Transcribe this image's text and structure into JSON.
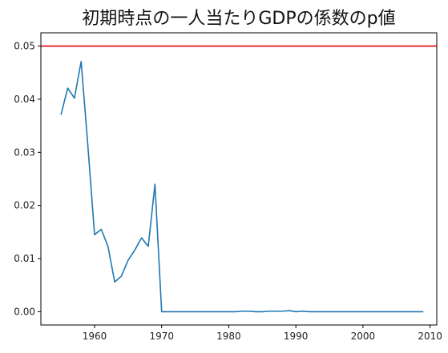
{
  "chart_data": {
    "type": "line",
    "title": "初期時点の一人当たりGDPの係数のp値",
    "xlabel": "",
    "ylabel": "",
    "xlim": [
      1952,
      2011
    ],
    "ylim": [
      -0.0025,
      0.0525
    ],
    "xticks": [
      1960,
      1970,
      1980,
      1990,
      2000,
      2010
    ],
    "xtick_labels": [
      "1960",
      "1970",
      "1980",
      "1990",
      "2000",
      "2010"
    ],
    "yticks": [
      0.0,
      0.01,
      0.02,
      0.03,
      0.04,
      0.05
    ],
    "ytick_labels": [
      "0.00",
      "0.01",
      "0.02",
      "0.03",
      "0.04",
      "0.05"
    ],
    "grid": false,
    "reference_line": {
      "y": 0.05,
      "color": "#e00000"
    },
    "series": [
      {
        "color": "#1f77b4",
        "x": [
          1955,
          1956,
          1957,
          1958,
          1959,
          1960,
          1961,
          1962,
          1963,
          1964,
          1965,
          1966,
          1967,
          1968,
          1969,
          1970,
          1971,
          1972,
          1973,
          1974,
          1975,
          1976,
          1977,
          1978,
          1979,
          1980,
          1981,
          1982,
          1983,
          1984,
          1985,
          1986,
          1987,
          1988,
          1989,
          1990,
          1991,
          1992,
          1993,
          1994,
          1995,
          1996,
          1997,
          1998,
          1999,
          2000,
          2001,
          2002,
          2003,
          2004,
          2005,
          2006,
          2007,
          2008,
          2009
        ],
        "y": [
          0.0371,
          0.0421,
          0.0402,
          0.0471,
          0.0313,
          0.0145,
          0.0155,
          0.0123,
          0.0056,
          0.0067,
          0.0097,
          0.0116,
          0.0139,
          0.0123,
          0.024,
          0.0,
          0.0,
          0.0,
          0.0,
          0.0,
          0.0,
          0.0,
          0.0,
          0.0,
          0.0,
          0.0,
          0.0,
          0.0001,
          0.0001,
          0.0,
          0.0,
          0.0001,
          0.0001,
          0.0001,
          0.0002,
          0.0,
          0.0001,
          0.0,
          0.0,
          0.0,
          0.0,
          0.0,
          0.0,
          0.0,
          0.0,
          0.0,
          0.0,
          0.0,
          0.0,
          0.0,
          0.0,
          0.0,
          0.0,
          0.0,
          0.0
        ]
      }
    ]
  }
}
